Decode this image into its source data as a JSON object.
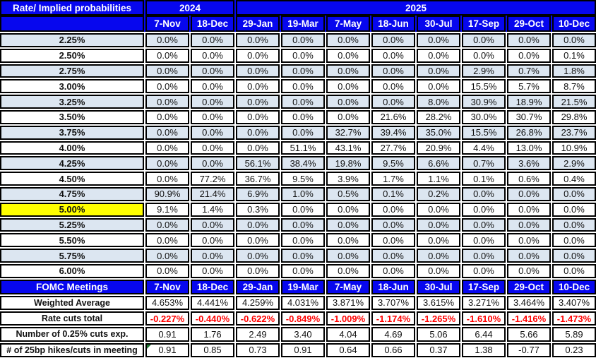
{
  "chart_data": {
    "type": "table",
    "title": "Rate/ Implied probabilities",
    "column_groups": [
      {
        "label": "2024",
        "span": 2
      },
      {
        "label": "2025",
        "span": 8
      }
    ],
    "columns": [
      "7-Nov",
      "18-Dec",
      "29-Jan",
      "19-Mar",
      "7-May",
      "18-Jun",
      "30-Jul",
      "17-Sep",
      "29-Oct",
      "10-Dec"
    ],
    "highlighted_rate": "5.00%",
    "rate_rows": [
      {
        "label": "2.25%",
        "values": [
          "0.0%",
          "0.0%",
          "0.0%",
          "0.0%",
          "0.0%",
          "0.0%",
          "0.0%",
          "0.0%",
          "0.0%",
          "0.0%"
        ]
      },
      {
        "label": "2.50%",
        "values": [
          "0.0%",
          "0.0%",
          "0.0%",
          "0.0%",
          "0.0%",
          "0.0%",
          "0.0%",
          "0.0%",
          "0.0%",
          "0.1%"
        ]
      },
      {
        "label": "2.75%",
        "values": [
          "0.0%",
          "0.0%",
          "0.0%",
          "0.0%",
          "0.0%",
          "0.0%",
          "0.0%",
          "2.9%",
          "0.7%",
          "1.8%"
        ]
      },
      {
        "label": "3.00%",
        "values": [
          "0.0%",
          "0.0%",
          "0.0%",
          "0.0%",
          "0.0%",
          "0.0%",
          "0.0%",
          "15.5%",
          "5.7%",
          "8.7%"
        ]
      },
      {
        "label": "3.25%",
        "values": [
          "0.0%",
          "0.0%",
          "0.0%",
          "0.0%",
          "0.0%",
          "0.0%",
          "8.0%",
          "30.9%",
          "18.9%",
          "21.5%"
        ]
      },
      {
        "label": "3.50%",
        "values": [
          "0.0%",
          "0.0%",
          "0.0%",
          "0.0%",
          "0.0%",
          "21.6%",
          "28.2%",
          "30.0%",
          "30.7%",
          "29.8%"
        ]
      },
      {
        "label": "3.75%",
        "values": [
          "0.0%",
          "0.0%",
          "0.0%",
          "0.0%",
          "32.7%",
          "39.4%",
          "35.0%",
          "15.5%",
          "26.8%",
          "23.7%"
        ]
      },
      {
        "label": "4.00%",
        "values": [
          "0.0%",
          "0.0%",
          "0.0%",
          "51.1%",
          "43.1%",
          "27.7%",
          "20.9%",
          "4.4%",
          "13.0%",
          "10.9%"
        ]
      },
      {
        "label": "4.25%",
        "values": [
          "0.0%",
          "0.0%",
          "56.1%",
          "38.4%",
          "19.8%",
          "9.5%",
          "6.6%",
          "0.7%",
          "3.6%",
          "2.9%"
        ]
      },
      {
        "label": "4.50%",
        "values": [
          "0.0%",
          "77.2%",
          "36.7%",
          "9.5%",
          "3.9%",
          "1.7%",
          "1.1%",
          "0.1%",
          "0.6%",
          "0.4%"
        ]
      },
      {
        "label": "4.75%",
        "values": [
          "90.9%",
          "21.4%",
          "6.9%",
          "1.0%",
          "0.5%",
          "0.1%",
          "0.2%",
          "0.0%",
          "0.0%",
          "0.0%"
        ]
      },
      {
        "label": "5.00%",
        "values": [
          "9.1%",
          "1.4%",
          "0.3%",
          "0.0%",
          "0.0%",
          "0.0%",
          "0.0%",
          "0.0%",
          "0.0%",
          "0.0%"
        ]
      },
      {
        "label": "5.25%",
        "values": [
          "0.0%",
          "0.0%",
          "0.0%",
          "0.0%",
          "0.0%",
          "0.0%",
          "0.0%",
          "0.0%",
          "0.0%",
          "0.0%"
        ]
      },
      {
        "label": "5.50%",
        "values": [
          "0.0%",
          "0.0%",
          "0.0%",
          "0.0%",
          "0.0%",
          "0.0%",
          "0.0%",
          "0.0%",
          "0.0%",
          "0.0%"
        ]
      },
      {
        "label": "5.75%",
        "values": [
          "0.0%",
          "0.0%",
          "0.0%",
          "0.0%",
          "0.0%",
          "0.0%",
          "0.0%",
          "0.0%",
          "0.0%",
          "0.0%"
        ]
      },
      {
        "label": "6.00%",
        "values": [
          "0.0%",
          "0.0%",
          "0.0%",
          "0.0%",
          "0.0%",
          "0.0%",
          "0.0%",
          "0.0%",
          "0.0%",
          "0.0%"
        ]
      }
    ],
    "fomc_row": {
      "label": "FOMC Meetings",
      "dates": [
        "7-Nov",
        "18-Dec",
        "29-Jan",
        "19-Mar",
        "7-May",
        "18-Jun",
        "30-Jul",
        "17-Sep",
        "29-Oct",
        "10-Dec"
      ]
    },
    "summary_rows": [
      {
        "label": "Weighted Average",
        "style": "normal",
        "values": [
          "4.653%",
          "4.441%",
          "4.259%",
          "4.031%",
          "3.871%",
          "3.707%",
          "3.615%",
          "3.271%",
          "3.464%",
          "3.407%"
        ]
      },
      {
        "label": "Rate cuts total",
        "style": "red-bold",
        "values": [
          "-0.227%",
          "-0.440%",
          "-0.622%",
          "-0.849%",
          "-1.009%",
          "-1.174%",
          "-1.265%",
          "-1.610%",
          "-1.416%",
          "-1.473%"
        ]
      },
      {
        "label": "Number of 0.25% cuts exp.",
        "style": "normal",
        "values": [
          "0.91",
          "1.76",
          "2.49",
          "3.40",
          "4.04",
          "4.69",
          "5.06",
          "6.44",
          "5.66",
          "5.89"
        ]
      },
      {
        "label": "# of 25bp hikes/cuts in meeting",
        "style": "normal",
        "note_indicator_col": 0,
        "values": [
          "0.91",
          "0.85",
          "0.73",
          "0.91",
          "0.64",
          "0.66",
          "0.37",
          "1.38",
          "-0.77",
          "0.23"
        ]
      }
    ],
    "colors": {
      "header_blue": "#0707ee",
      "row_alt_blue": "#dce6f1",
      "highlight_yellow": "#ffff00",
      "negative_red": "#ff0000",
      "border_black": "#000000",
      "note_green": "#1e7a33"
    }
  }
}
